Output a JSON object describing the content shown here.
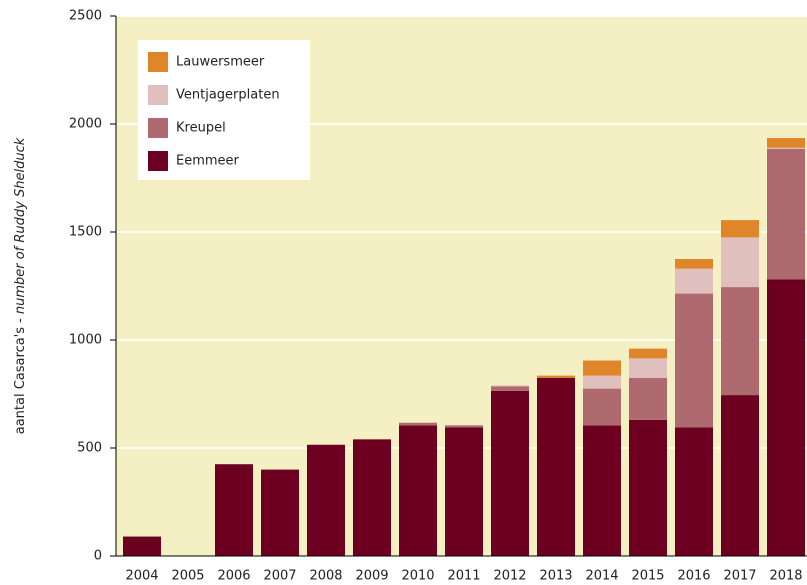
{
  "chart_data": {
    "type": "stacked_bar",
    "y_label": [
      "aantal Casarca's -",
      "number of Ruddy Shelduck"
    ],
    "categories": [
      "2004",
      "2005",
      "2006",
      "2007",
      "2008",
      "2009",
      "2010",
      "2011",
      "2012",
      "2013",
      "2014",
      "2015",
      "2016",
      "2017",
      "2018"
    ],
    "series": [
      {
        "name": "Eemmeer",
        "color": "#6d0021",
        "values": [
          90,
          0,
          425,
          400,
          515,
          540,
          605,
          595,
          765,
          825,
          605,
          630,
          595,
          745,
          1280
        ]
      },
      {
        "name": "Kreupel",
        "color": "#ae6a6e",
        "values": [
          0,
          0,
          0,
          0,
          0,
          0,
          12,
          10,
          20,
          0,
          170,
          195,
          620,
          500,
          605
        ]
      },
      {
        "name": "Ventjagerplaten",
        "color": "#e0bfbf",
        "values": [
          0,
          0,
          0,
          0,
          0,
          0,
          0,
          0,
          5,
          0,
          60,
          90,
          115,
          230,
          5
        ]
      },
      {
        "name": "Lauwersmeer",
        "color": "#e0862a",
        "values": [
          0,
          0,
          0,
          0,
          0,
          0,
          0,
          0,
          0,
          10,
          70,
          45,
          45,
          80,
          45
        ]
      }
    ],
    "ylim": [
      0,
      2500
    ],
    "yticks": [
      0,
      500,
      1000,
      1500,
      2000,
      2500
    ],
    "grid": true
  }
}
